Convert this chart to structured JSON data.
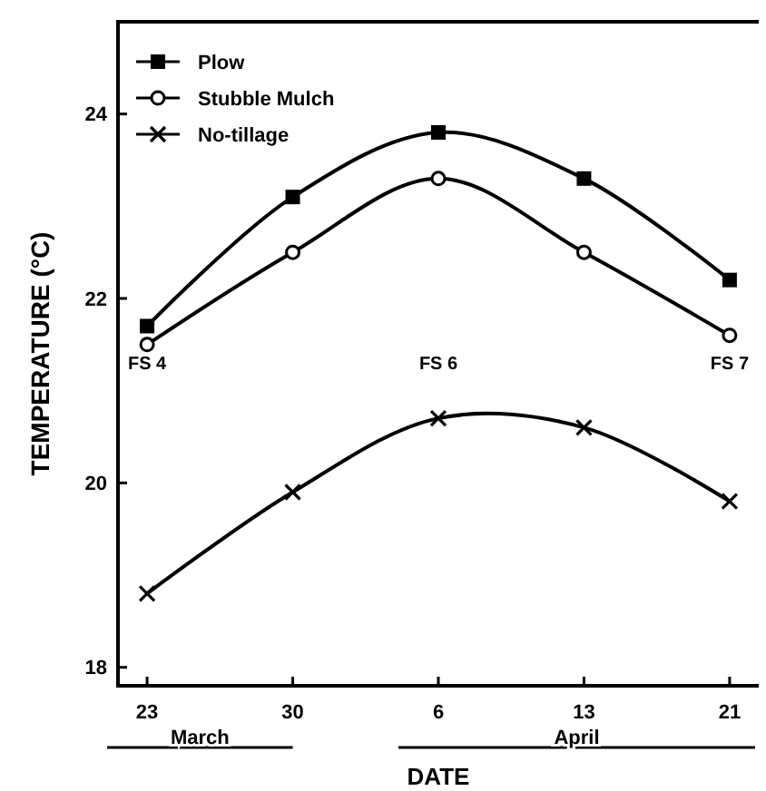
{
  "chart_data": {
    "type": "line",
    "xlabel": "DATE",
    "ylabel": "TEMPERATURE (°C)",
    "categories": [
      "23",
      "30",
      "6",
      "13",
      "21"
    ],
    "series": [
      {
        "name": "Plow",
        "color": "#000000",
        "marker": "square",
        "values": [
          21.7,
          23.1,
          23.8,
          23.3,
          22.2
        ]
      },
      {
        "name": "Stubble Mulch",
        "color": "#000000",
        "marker": "circle",
        "values": [
          21.5,
          22.5,
          23.3,
          22.5,
          21.6
        ]
      },
      {
        "name": "No-tillage",
        "color": "#000000",
        "marker": "cross",
        "values": [
          18.8,
          19.9,
          20.7,
          20.6,
          19.8
        ]
      }
    ],
    "ylim": [
      17.8,
      25
    ],
    "yticks": [
      18,
      20,
      22,
      24
    ],
    "grid": false,
    "legend": "top left",
    "line_style": "solid",
    "annotations": [
      "FS 4",
      "FS 6",
      "FS 7",
      "March",
      "April"
    ]
  }
}
